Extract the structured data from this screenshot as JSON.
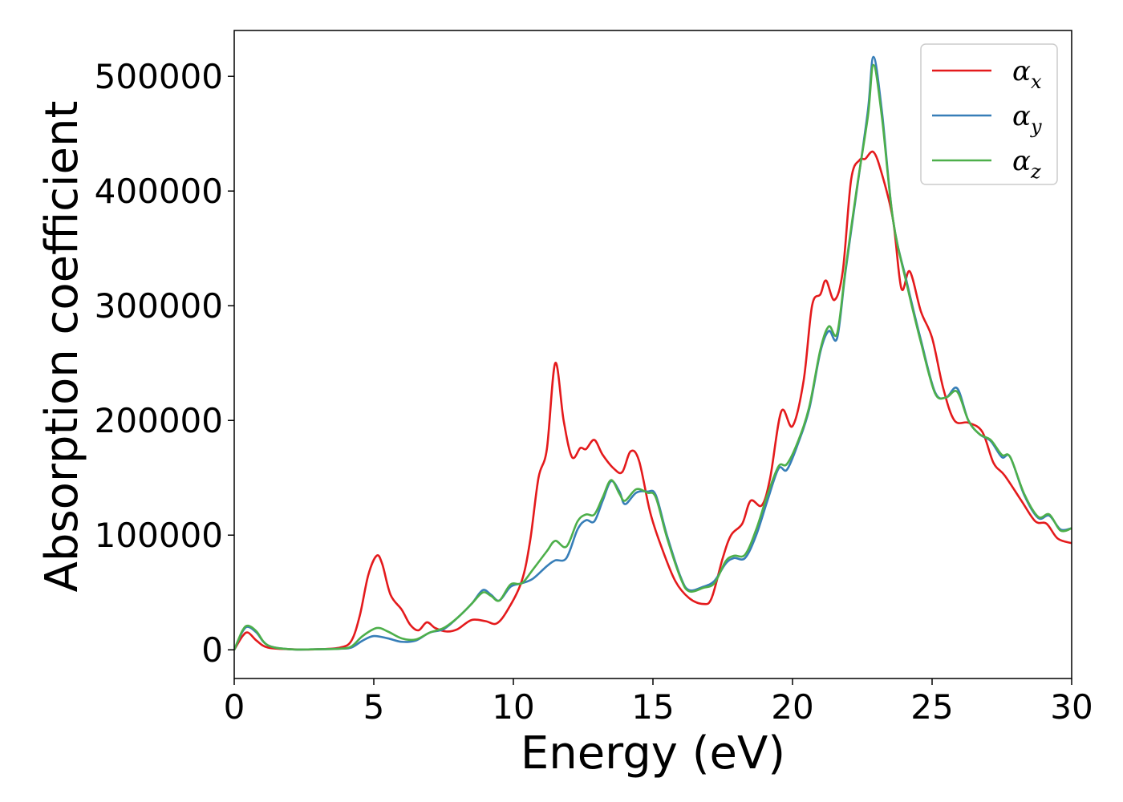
{
  "chart_data": {
    "type": "line",
    "xlabel": "Energy (eV)",
    "ylabel": "Absorption coefficient",
    "xlim": [
      0,
      30
    ],
    "ylim": [
      -25000,
      540000
    ],
    "xticks": [
      0,
      5,
      10,
      15,
      20,
      25,
      30
    ],
    "xtick_labels": [
      "0",
      "5",
      "10",
      "15",
      "20",
      "25",
      "30"
    ],
    "yticks": [
      0,
      100000,
      200000,
      300000,
      400000,
      500000
    ],
    "ytick_labels": [
      "0",
      "100000",
      "200000",
      "300000",
      "400000",
      "500000"
    ],
    "grid": false,
    "legend_position": "top-right",
    "series": [
      {
        "legend_base": "α",
        "legend_sub": "x",
        "color": "#e41a1c",
        "points": [
          [
            0,
            0
          ],
          [
            0.3,
            12000
          ],
          [
            0.5,
            15000
          ],
          [
            0.8,
            8000
          ],
          [
            1.2,
            2000
          ],
          [
            2,
            500
          ],
          [
            3,
            500
          ],
          [
            3.8,
            2000
          ],
          [
            4.2,
            8000
          ],
          [
            4.5,
            30000
          ],
          [
            4.8,
            65000
          ],
          [
            5.1,
            82000
          ],
          [
            5.3,
            75000
          ],
          [
            5.6,
            48000
          ],
          [
            6.0,
            35000
          ],
          [
            6.3,
            22000
          ],
          [
            6.6,
            17000
          ],
          [
            6.9,
            24000
          ],
          [
            7.2,
            19000
          ],
          [
            7.6,
            16000
          ],
          [
            8.0,
            18000
          ],
          [
            8.5,
            26000
          ],
          [
            9.0,
            25000
          ],
          [
            9.4,
            23000
          ],
          [
            9.8,
            35000
          ],
          [
            10.3,
            60000
          ],
          [
            10.6,
            95000
          ],
          [
            10.9,
            150000
          ],
          [
            11.2,
            175000
          ],
          [
            11.5,
            250000
          ],
          [
            11.8,
            200000
          ],
          [
            12.1,
            168000
          ],
          [
            12.4,
            176000
          ],
          [
            12.6,
            175000
          ],
          [
            12.9,
            183000
          ],
          [
            13.2,
            170000
          ],
          [
            13.6,
            158000
          ],
          [
            13.9,
            155000
          ],
          [
            14.2,
            173000
          ],
          [
            14.5,
            165000
          ],
          [
            14.9,
            120000
          ],
          [
            15.3,
            90000
          ],
          [
            15.8,
            60000
          ],
          [
            16.3,
            45000
          ],
          [
            16.8,
            40000
          ],
          [
            17.1,
            45000
          ],
          [
            17.5,
            80000
          ],
          [
            17.8,
            100000
          ],
          [
            18.2,
            110000
          ],
          [
            18.5,
            130000
          ],
          [
            18.9,
            126000
          ],
          [
            19.2,
            150000
          ],
          [
            19.6,
            208000
          ],
          [
            20.0,
            195000
          ],
          [
            20.4,
            235000
          ],
          [
            20.7,
            300000
          ],
          [
            21.0,
            310000
          ],
          [
            21.2,
            322000
          ],
          [
            21.5,
            305000
          ],
          [
            21.8,
            330000
          ],
          [
            22.1,
            410000
          ],
          [
            22.4,
            427000
          ],
          [
            22.6,
            428000
          ],
          [
            22.9,
            434000
          ],
          [
            23.2,
            415000
          ],
          [
            23.6,
            375000
          ],
          [
            23.9,
            315000
          ],
          [
            24.2,
            330000
          ],
          [
            24.6,
            295000
          ],
          [
            25.0,
            272000
          ],
          [
            25.4,
            228000
          ],
          [
            25.8,
            200000
          ],
          [
            26.3,
            198000
          ],
          [
            26.8,
            190000
          ],
          [
            27.2,
            163000
          ],
          [
            27.6,
            152000
          ],
          [
            28.2,
            130000
          ],
          [
            28.7,
            112000
          ],
          [
            29.1,
            110000
          ],
          [
            29.5,
            97000
          ],
          [
            30.0,
            93000
          ]
        ]
      },
      {
        "legend_base": "α",
        "legend_sub": "y",
        "color": "#377eb8",
        "points": [
          [
            0,
            0
          ],
          [
            0.3,
            16000
          ],
          [
            0.5,
            20000
          ],
          [
            0.8,
            15000
          ],
          [
            1.2,
            4000
          ],
          [
            2,
            500
          ],
          [
            3,
            500
          ],
          [
            3.8,
            1000
          ],
          [
            4.2,
            2000
          ],
          [
            4.6,
            8000
          ],
          [
            5.0,
            12000
          ],
          [
            5.5,
            10000
          ],
          [
            6.0,
            7000
          ],
          [
            6.5,
            8000
          ],
          [
            7.0,
            15000
          ],
          [
            7.5,
            18000
          ],
          [
            8.0,
            28000
          ],
          [
            8.5,
            40000
          ],
          [
            8.9,
            52000
          ],
          [
            9.2,
            48000
          ],
          [
            9.5,
            43000
          ],
          [
            9.9,
            55000
          ],
          [
            10.3,
            58000
          ],
          [
            10.7,
            62000
          ],
          [
            11.2,
            73000
          ],
          [
            11.5,
            78000
          ],
          [
            11.9,
            80000
          ],
          [
            12.3,
            105000
          ],
          [
            12.6,
            113000
          ],
          [
            12.9,
            112000
          ],
          [
            13.2,
            130000
          ],
          [
            13.5,
            147000
          ],
          [
            13.8,
            138000
          ],
          [
            14.0,
            127000
          ],
          [
            14.4,
            137000
          ],
          [
            14.8,
            138000
          ],
          [
            15.1,
            135000
          ],
          [
            15.5,
            100000
          ],
          [
            16.0,
            63000
          ],
          [
            16.3,
            52000
          ],
          [
            16.8,
            55000
          ],
          [
            17.2,
            60000
          ],
          [
            17.6,
            75000
          ],
          [
            17.9,
            80000
          ],
          [
            18.3,
            80000
          ],
          [
            18.7,
            100000
          ],
          [
            19.1,
            130000
          ],
          [
            19.5,
            158000
          ],
          [
            19.8,
            157000
          ],
          [
            20.2,
            180000
          ],
          [
            20.6,
            210000
          ],
          [
            21.0,
            260000
          ],
          [
            21.3,
            278000
          ],
          [
            21.6,
            272000
          ],
          [
            21.9,
            330000
          ],
          [
            22.3,
            400000
          ],
          [
            22.7,
            470000
          ],
          [
            22.9,
            517000
          ],
          [
            23.2,
            470000
          ],
          [
            23.6,
            375000
          ],
          [
            24.1,
            320000
          ],
          [
            24.6,
            270000
          ],
          [
            25.1,
            225000
          ],
          [
            25.5,
            220000
          ],
          [
            25.9,
            228000
          ],
          [
            26.3,
            200000
          ],
          [
            26.7,
            188000
          ],
          [
            27.1,
            182000
          ],
          [
            27.5,
            168000
          ],
          [
            27.8,
            168000
          ],
          [
            28.3,
            135000
          ],
          [
            28.8,
            115000
          ],
          [
            29.2,
            117000
          ],
          [
            29.6,
            105000
          ],
          [
            30.0,
            106000
          ]
        ]
      },
      {
        "legend_base": "α",
        "legend_sub": "z",
        "color": "#4daf4a",
        "points": [
          [
            0,
            0
          ],
          [
            0.3,
            17000
          ],
          [
            0.5,
            21000
          ],
          [
            0.8,
            16000
          ],
          [
            1.2,
            4000
          ],
          [
            2,
            500
          ],
          [
            3,
            500
          ],
          [
            3.8,
            1000
          ],
          [
            4.2,
            3000
          ],
          [
            4.6,
            12000
          ],
          [
            5.1,
            19000
          ],
          [
            5.5,
            16000
          ],
          [
            6.0,
            10000
          ],
          [
            6.5,
            9000
          ],
          [
            7.0,
            15000
          ],
          [
            7.5,
            19000
          ],
          [
            8.0,
            28000
          ],
          [
            8.5,
            40000
          ],
          [
            8.9,
            50000
          ],
          [
            9.2,
            47000
          ],
          [
            9.5,
            43000
          ],
          [
            9.9,
            57000
          ],
          [
            10.3,
            58000
          ],
          [
            10.7,
            70000
          ],
          [
            11.2,
            86000
          ],
          [
            11.5,
            95000
          ],
          [
            11.9,
            90000
          ],
          [
            12.3,
            112000
          ],
          [
            12.6,
            118000
          ],
          [
            12.9,
            118000
          ],
          [
            13.2,
            133000
          ],
          [
            13.5,
            148000
          ],
          [
            13.8,
            136000
          ],
          [
            14.0,
            130000
          ],
          [
            14.4,
            140000
          ],
          [
            14.8,
            137000
          ],
          [
            15.1,
            133000
          ],
          [
            15.5,
            98000
          ],
          [
            16.0,
            62000
          ],
          [
            16.3,
            51000
          ],
          [
            16.8,
            54000
          ],
          [
            17.2,
            58000
          ],
          [
            17.6,
            77000
          ],
          [
            17.9,
            82000
          ],
          [
            18.3,
            83000
          ],
          [
            18.7,
            105000
          ],
          [
            19.1,
            135000
          ],
          [
            19.5,
            160000
          ],
          [
            19.8,
            162000
          ],
          [
            20.2,
            182000
          ],
          [
            20.6,
            212000
          ],
          [
            21.0,
            262000
          ],
          [
            21.3,
            282000
          ],
          [
            21.6,
            276000
          ],
          [
            21.9,
            332000
          ],
          [
            22.3,
            402000
          ],
          [
            22.7,
            465000
          ],
          [
            22.9,
            510000
          ],
          [
            23.2,
            465000
          ],
          [
            23.6,
            375000
          ],
          [
            24.1,
            318000
          ],
          [
            24.6,
            268000
          ],
          [
            25.1,
            224000
          ],
          [
            25.5,
            220000
          ],
          [
            25.9,
            225000
          ],
          [
            26.3,
            200000
          ],
          [
            26.7,
            188000
          ],
          [
            27.1,
            183000
          ],
          [
            27.5,
            170000
          ],
          [
            27.8,
            168000
          ],
          [
            28.3,
            136000
          ],
          [
            28.8,
            116000
          ],
          [
            29.2,
            118000
          ],
          [
            29.6,
            104000
          ],
          [
            30.0,
            106000
          ]
        ]
      }
    ]
  }
}
